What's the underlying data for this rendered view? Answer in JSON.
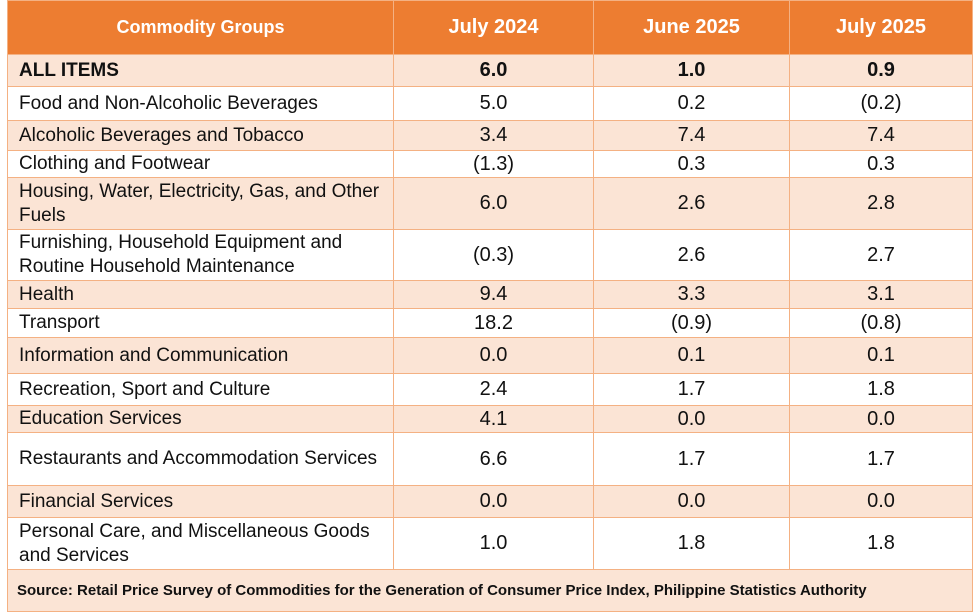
{
  "table": {
    "headers": [
      "Commodity Groups",
      "July 2024",
      "June 2025",
      "July 2025"
    ],
    "rows": [
      {
        "name": "ALL ITEMS",
        "values": [
          "6.0",
          "1.0",
          "0.9"
        ]
      },
      {
        "name": "Food and Non-Alcoholic Beverages",
        "values": [
          "5.0",
          "0.2",
          "(0.2)"
        ]
      },
      {
        "name": "Alcoholic Beverages and Tobacco",
        "values": [
          "3.4",
          "7.4",
          "7.4"
        ]
      },
      {
        "name": "Clothing and Footwear",
        "values": [
          "(1.3)",
          "0.3",
          "0.3"
        ]
      },
      {
        "name": "Housing, Water, Electricity, Gas, and Other Fuels",
        "values": [
          "6.0",
          "2.6",
          "2.8"
        ]
      },
      {
        "name": "Furnishing, Household Equipment and Routine Household Maintenance",
        "values": [
          "(0.3)",
          "2.6",
          "2.7"
        ]
      },
      {
        "name": "Health",
        "values": [
          "9.4",
          "3.3",
          "3.1"
        ]
      },
      {
        "name": "Transport",
        "values": [
          "18.2",
          "(0.9)",
          "(0.8)"
        ]
      },
      {
        "name": "Information and Communication",
        "values": [
          "0.0",
          "0.1",
          "0.1"
        ]
      },
      {
        "name": "Recreation, Sport and Culture",
        "values": [
          "2.4",
          "1.7",
          "1.8"
        ]
      },
      {
        "name": "Education Services",
        "values": [
          "4.1",
          "0.0",
          "0.0"
        ]
      },
      {
        "name": "Restaurants and Accommodation Services",
        "values": [
          "6.6",
          "1.7",
          "1.7"
        ]
      },
      {
        "name": "Financial Services",
        "values": [
          "0.0",
          "0.0",
          "0.0"
        ]
      },
      {
        "name": "Personal Care, and Miscellaneous Goods and Services",
        "values": [
          "1.0",
          "1.8",
          "1.8"
        ]
      }
    ],
    "source": "Source: Retail Price Survey of Commodities for the Generation of Consumer Price Index, Philippine Statistics Authority"
  },
  "colors": {
    "header_bg": "#ed7d31",
    "header_text": "#ffffff",
    "shaded_row": "#fbe4d5",
    "plain_row": "#ffffff",
    "border": "#f4b183"
  }
}
